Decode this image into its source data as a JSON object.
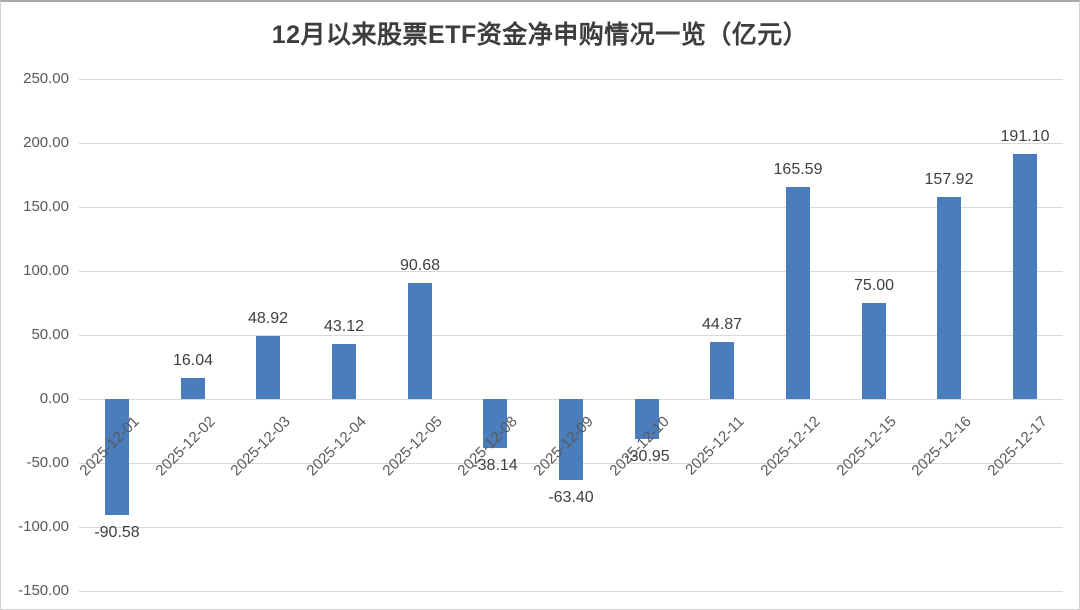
{
  "chart_data": {
    "type": "bar",
    "title": "12月以来股票ETF资金净申购情况一览（亿元）",
    "categories": [
      "2025-12-01",
      "2025-12-02",
      "2025-12-03",
      "2025-12-04",
      "2025-12-05",
      "2025-12-08",
      "2025-12-09",
      "2025-12-10",
      "2025-12-11",
      "2025-12-12",
      "2025-12-15",
      "2025-12-16",
      "2025-12-17"
    ],
    "values": [
      -90.58,
      16.04,
      48.92,
      43.12,
      90.68,
      -38.14,
      -63.4,
      -30.95,
      44.87,
      165.59,
      75.0,
      157.92,
      191.1
    ],
    "xlabel": "",
    "ylabel": "",
    "ylim": [
      -150,
      250
    ],
    "ytick_step": 50,
    "ytick_format_decimals": 2,
    "grid": true,
    "legend_position": "none",
    "value_labels_shown": true,
    "colors": {
      "bar": "#4A7DBB",
      "gridline": "#d9d9d9",
      "axis_label": "#595959",
      "value_label": "#3f3f3f",
      "title": "#3d3d3d",
      "border": "#d2d2d2",
      "background": "#ffffff"
    }
  }
}
